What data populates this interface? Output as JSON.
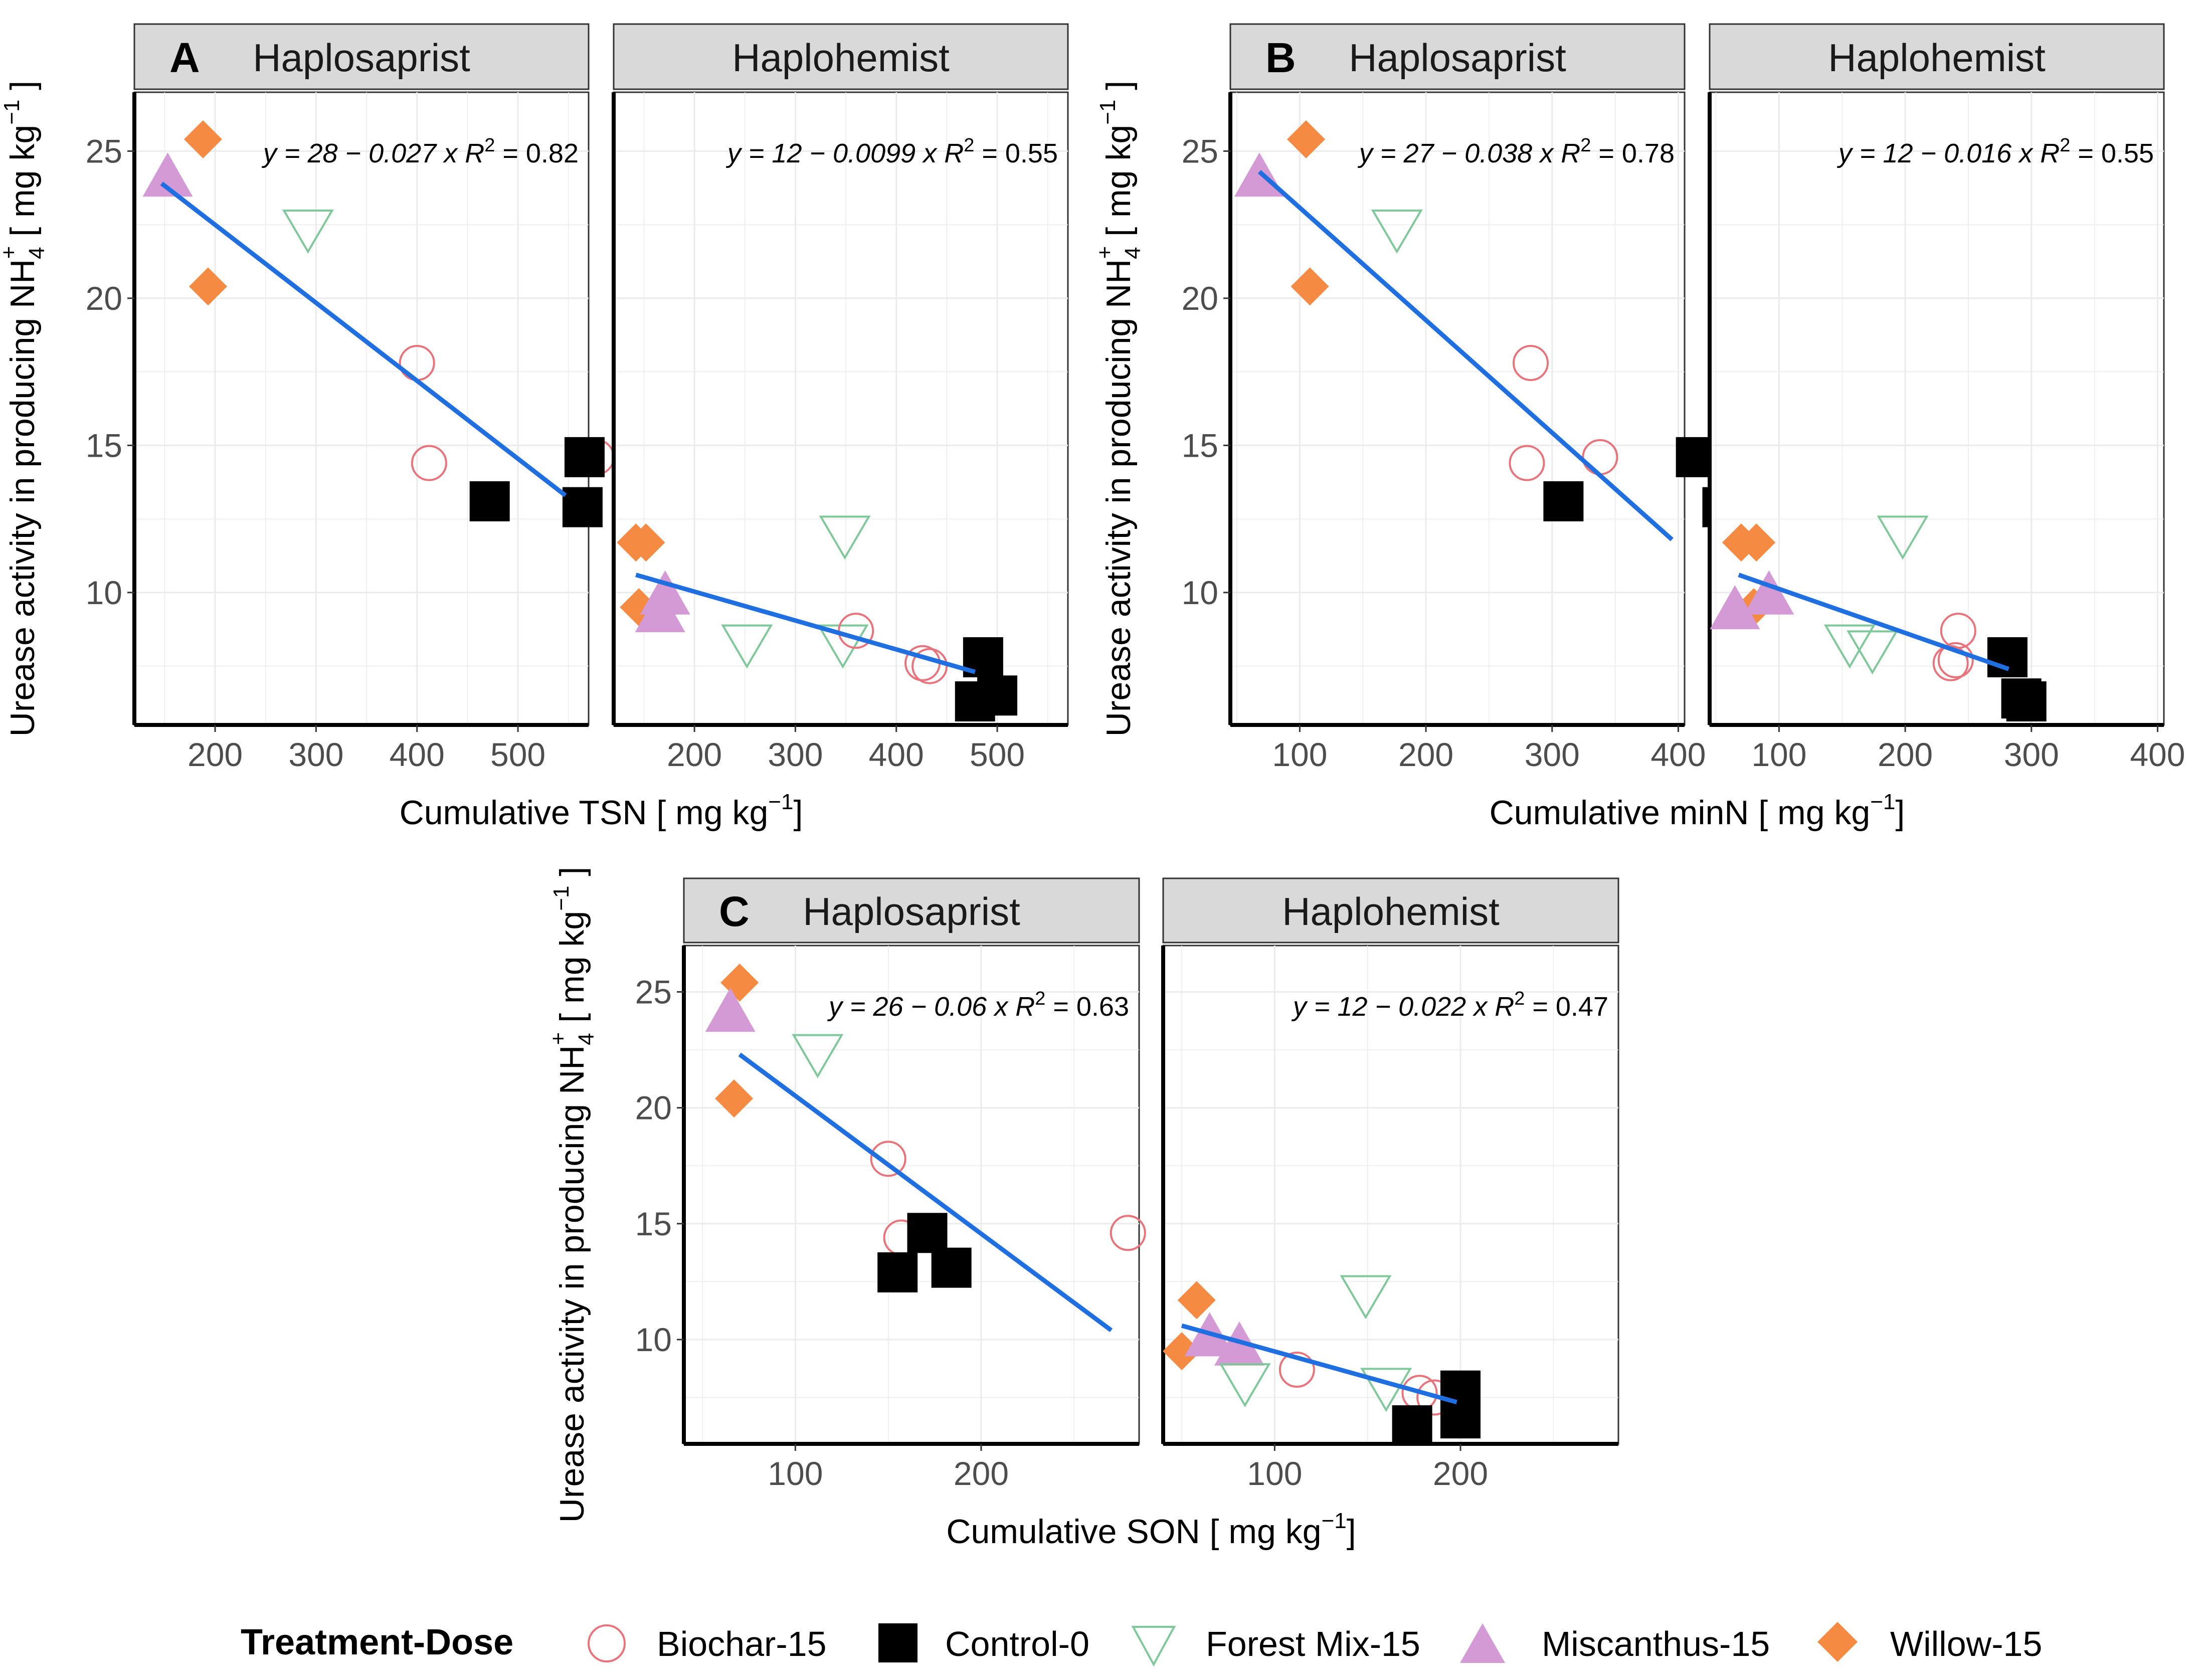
{
  "chart_data": {
    "type": "scatter",
    "y_axis_title": {
      "prefix": "Urease activity in producing ",
      "species": "NH",
      "species_sub": "4",
      "species_sup": "+",
      "unit_open": " [ mg kg",
      "unit_exp": "−1",
      "unit_close": " ]"
    },
    "facet_labels": [
      "Haplosaprist",
      "Haplohemist"
    ],
    "ylim": [
      5.5,
      27
    ],
    "yticks": [
      10,
      15,
      20,
      25
    ],
    "legend": {
      "title": "Treatment-Dose",
      "items": [
        {
          "key": "biochar",
          "label": "Biochar-15",
          "shape": "open-circle",
          "color": "#e8737a"
        },
        {
          "key": "control",
          "label": "Control-0",
          "shape": "filled-square",
          "color": "#000000"
        },
        {
          "key": "forest",
          "label": "Forest Mix-15",
          "shape": "open-triangle-down",
          "color": "#7fc89a"
        },
        {
          "key": "miscanthus",
          "label": "Miscanthus-15",
          "shape": "filled-triangle-up",
          "color": "#d49ad6"
        },
        {
          "key": "willow",
          "label": "Willow-15",
          "shape": "filled-diamond",
          "color": "#f58a42"
        }
      ]
    },
    "fit_color": "#1f6fe0",
    "panels": [
      {
        "letter": "A",
        "x_title": {
          "text": "Cumulative TSN [ mg kg",
          "exp": "−1",
          "close": "]"
        },
        "xlim": [
          120,
          570
        ],
        "xticks": [
          200,
          300,
          400,
          500
        ],
        "facets": [
          {
            "label": "Haplosaprist",
            "equation": "y = 28 − 0.027 x",
            "r2_value": "0.82",
            "fit": {
              "x": [
                147,
                547
              ],
              "y": [
                23.9,
                13.3
              ]
            },
            "points": [
              {
                "t": "willow",
                "x": 188,
                "y": 25.4
              },
              {
                "t": "miscanthus",
                "x": 153,
                "y": 24.1
              },
              {
                "t": "willow",
                "x": 193,
                "y": 20.4
              },
              {
                "t": "forest",
                "x": 292,
                "y": 22.4
              },
              {
                "t": "biochar",
                "x": 400,
                "y": 17.8
              },
              {
                "t": "biochar",
                "x": 412,
                "y": 14.4
              },
              {
                "t": "biochar",
                "x": 578,
                "y": 14.6
              },
              {
                "t": "control",
                "x": 566,
                "y": 14.6
              },
              {
                "t": "control",
                "x": 472,
                "y": 13.1
              },
              {
                "t": "control",
                "x": 564,
                "y": 12.9
              }
            ]
          },
          {
            "label": "Haplohemist",
            "equation": "y = 12 − 0.0099 x",
            "r2_value": "0.55",
            "fit": {
              "x": [
                142,
                478
              ],
              "y": [
                10.6,
                7.3
              ]
            },
            "points": [
              {
                "t": "willow",
                "x": 142,
                "y": 11.7
              },
              {
                "t": "willow",
                "x": 152,
                "y": 11.7
              },
              {
                "t": "willow",
                "x": 145,
                "y": 9.5
              },
              {
                "t": "miscanthus",
                "x": 171,
                "y": 9.9
              },
              {
                "t": "miscanthus",
                "x": 166,
                "y": 9.3
              },
              {
                "t": "forest",
                "x": 349,
                "y": 12.0
              },
              {
                "t": "forest",
                "x": 252,
                "y": 8.3
              },
              {
                "t": "forest",
                "x": 347,
                "y": 8.3
              },
              {
                "t": "biochar",
                "x": 360,
                "y": 8.7
              },
              {
                "t": "biochar",
                "x": 426,
                "y": 7.6
              },
              {
                "t": "biochar",
                "x": 433,
                "y": 7.5
              },
              {
                "t": "control",
                "x": 486,
                "y": 7.8
              },
              {
                "t": "control",
                "x": 478,
                "y": 6.3
              },
              {
                "t": "control",
                "x": 500,
                "y": 6.5
              }
            ]
          }
        ]
      },
      {
        "letter": "B",
        "x_title": {
          "text": "Cumulative minN [ mg kg",
          "exp": "−1",
          "close": "]"
        },
        "xlim": [
          45,
          405
        ],
        "xticks": [
          100,
          200,
          300,
          400
        ],
        "facets": [
          {
            "label": "Haplosaprist",
            "equation": "y = 27 − 0.038 x",
            "r2_value": "0.78",
            "fit": {
              "x": [
                68,
                395
              ],
              "y": [
                24.3,
                11.8
              ]
            },
            "points": [
              {
                "t": "willow",
                "x": 105,
                "y": 25.4
              },
              {
                "t": "miscanthus",
                "x": 68,
                "y": 24.1
              },
              {
                "t": "willow",
                "x": 108,
                "y": 20.4
              },
              {
                "t": "forest",
                "x": 177,
                "y": 22.4
              },
              {
                "t": "biochar",
                "x": 283,
                "y": 17.8
              },
              {
                "t": "biochar",
                "x": 280,
                "y": 14.4
              },
              {
                "t": "biochar",
                "x": 338,
                "y": 14.6
              },
              {
                "t": "control",
                "x": 414,
                "y": 14.6
              },
              {
                "t": "control",
                "x": 309,
                "y": 13.1
              },
              {
                "t": "control",
                "x": 435,
                "y": 12.9
              }
            ]
          },
          {
            "label": "Haplohemist",
            "equation": "y = 12 − 0.016 x",
            "r2_value": "0.55",
            "fit": {
              "x": [
                68,
                282
              ],
              "y": [
                10.6,
                7.4
              ]
            },
            "points": [
              {
                "t": "willow",
                "x": 70,
                "y": 11.7
              },
              {
                "t": "willow",
                "x": 82,
                "y": 11.7
              },
              {
                "t": "willow",
                "x": 80,
                "y": 9.5
              },
              {
                "t": "miscanthus",
                "x": 65,
                "y": 9.4
              },
              {
                "t": "miscanthus",
                "x": 92,
                "y": 9.9
              },
              {
                "t": "forest",
                "x": 198,
                "y": 12.0
              },
              {
                "t": "forest",
                "x": 156,
                "y": 8.3
              },
              {
                "t": "forest",
                "x": 174,
                "y": 8.1
              },
              {
                "t": "biochar",
                "x": 242,
                "y": 8.7
              },
              {
                "t": "biochar",
                "x": 236,
                "y": 7.6
              },
              {
                "t": "biochar",
                "x": 240,
                "y": 7.7
              },
              {
                "t": "control",
                "x": 281,
                "y": 7.8
              },
              {
                "t": "control",
                "x": 292,
                "y": 6.4
              },
              {
                "t": "control",
                "x": 296,
                "y": 6.3
              }
            ]
          }
        ]
      },
      {
        "letter": "C",
        "x_title": {
          "text": "Cumulative SON [ mg kg",
          "exp": "−1",
          "close": "]"
        },
        "xlim": [
          40,
          285
        ],
        "xticks": [
          100,
          200
        ],
        "facets": [
          {
            "label": "Haplosaprist",
            "equation": "y = 26 − 0.06 x",
            "r2_value": "0.63",
            "fit": {
              "x": [
                70,
                270
              ],
              "y": [
                22.3,
                10.4
              ]
            },
            "points": [
              {
                "t": "willow",
                "x": 70,
                "y": 25.4
              },
              {
                "t": "miscanthus",
                "x": 65,
                "y": 24.1
              },
              {
                "t": "willow",
                "x": 67,
                "y": 20.4
              },
              {
                "t": "forest",
                "x": 112,
                "y": 22.4
              },
              {
                "t": "biochar",
                "x": 150,
                "y": 17.8
              },
              {
                "t": "biochar",
                "x": 157,
                "y": 14.4
              },
              {
                "t": "biochar",
                "x": 279,
                "y": 14.6
              },
              {
                "t": "control",
                "x": 171,
                "y": 14.6
              },
              {
                "t": "control",
                "x": 155,
                "y": 12.9
              },
              {
                "t": "control",
                "x": 184,
                "y": 13.1
              }
            ]
          },
          {
            "label": "Haplohemist",
            "equation": "y = 12 − 0.022 x",
            "r2_value": "0.47",
            "fit": {
              "x": [
                50,
                198
              ],
              "y": [
                10.6,
                7.3
              ]
            },
            "points": [
              {
                "t": "willow",
                "x": 58,
                "y": 11.7
              },
              {
                "t": "willow",
                "x": 50,
                "y": 9.5
              },
              {
                "t": "miscanthus",
                "x": 65,
                "y": 10.1
              },
              {
                "t": "miscanthus",
                "x": 81,
                "y": 9.7
              },
              {
                "t": "forest",
                "x": 149,
                "y": 12.0
              },
              {
                "t": "forest",
                "x": 160,
                "y": 8.0
              },
              {
                "t": "forest",
                "x": 84,
                "y": 8.2
              },
              {
                "t": "biochar",
                "x": 112,
                "y": 8.7
              },
              {
                "t": "biochar",
                "x": 178,
                "y": 7.7
              },
              {
                "t": "biochar",
                "x": 186,
                "y": 7.5
              },
              {
                "t": "control",
                "x": 200,
                "y": 7.8
              },
              {
                "t": "control",
                "x": 200,
                "y": 6.6
              },
              {
                "t": "control",
                "x": 174,
                "y": 6.3
              }
            ]
          }
        ]
      }
    ]
  }
}
